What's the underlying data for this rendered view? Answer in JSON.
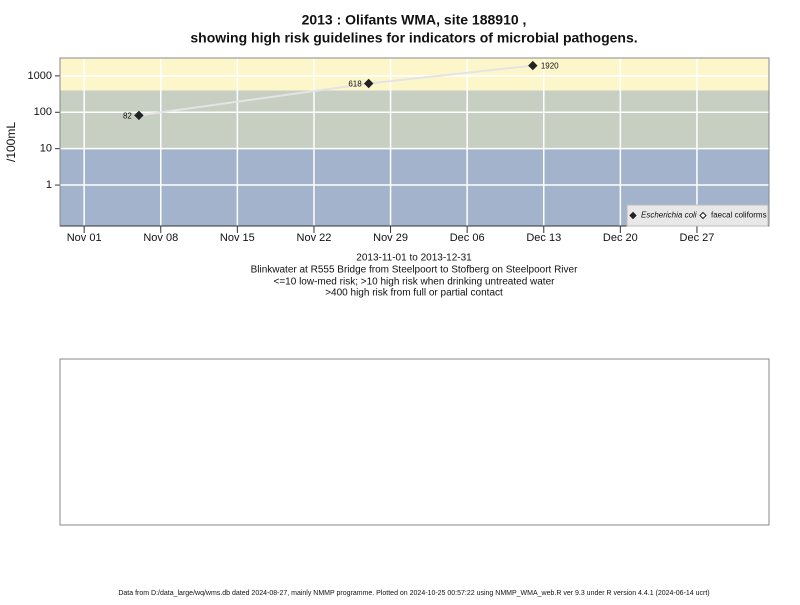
{
  "chart_data": {
    "type": "line",
    "title": [
      "2013 : Olifants WMA, site 188910 ,",
      "showing high risk guidelines for indicators of microbial pathogens."
    ],
    "ylabel": "/100mL",
    "subtitle": [
      "2013-11-01 to 2013-12-31",
      "Blinkwater at R555 Bridge from Steelpoort to Stofberg on Steelpoort River",
      "<=10 low-med risk; >10 high risk when drinking untreated water",
      ">400 high risk from full or partial contact"
    ],
    "footer": "Data from D:/data_large/wq/wms.db dated 2024-08-27, mainly NMMP programme. Plotted on 2024-10-25 00:57:22 using NMMP_WMA_web.R ver 9.3 under R version 4.4.1 (2024-06-14 ucrt)",
    "x": [
      "2013-11-06",
      "2013-11-27",
      "2013-12-12"
    ],
    "series": [
      {
        "name": "Escherichia coli",
        "color": "#222222",
        "line_color": "#e4e4e4",
        "values": [
          82,
          618,
          1920
        ]
      },
      {
        "name": "faecal coliforms",
        "color": "#ffffff",
        "values": [
          null,
          null,
          null
        ]
      }
    ],
    "xlim": [
      "2013-10-29T19:00",
      "2014-01-02T14:00"
    ],
    "xticks": [
      {
        "value": "2013-11-01",
        "label": "Nov 01"
      },
      {
        "value": "2013-11-08",
        "label": "Nov 08"
      },
      {
        "value": "2013-11-15",
        "label": "Nov 15"
      },
      {
        "value": "2013-11-22",
        "label": "Nov 22"
      },
      {
        "value": "2013-11-29",
        "label": "Nov 29"
      },
      {
        "value": "2013-12-06",
        "label": "Dec 06"
      },
      {
        "value": "2013-12-13",
        "label": "Dec 13"
      },
      {
        "value": "2013-12-20",
        "label": "Dec 20"
      },
      {
        "value": "2013-12-27",
        "label": "Dec 27"
      }
    ],
    "ylim": [
      0.075,
      3100
    ],
    "yticks": [
      1,
      10,
      100,
      1000
    ],
    "log_y": true,
    "grid": true,
    "band_thresholds": [
      10,
      400
    ],
    "band_colors": [
      "#a2b3cb",
      "#c7cfc3",
      "#fdf6cb"
    ],
    "legend": "bottom-right"
  }
}
